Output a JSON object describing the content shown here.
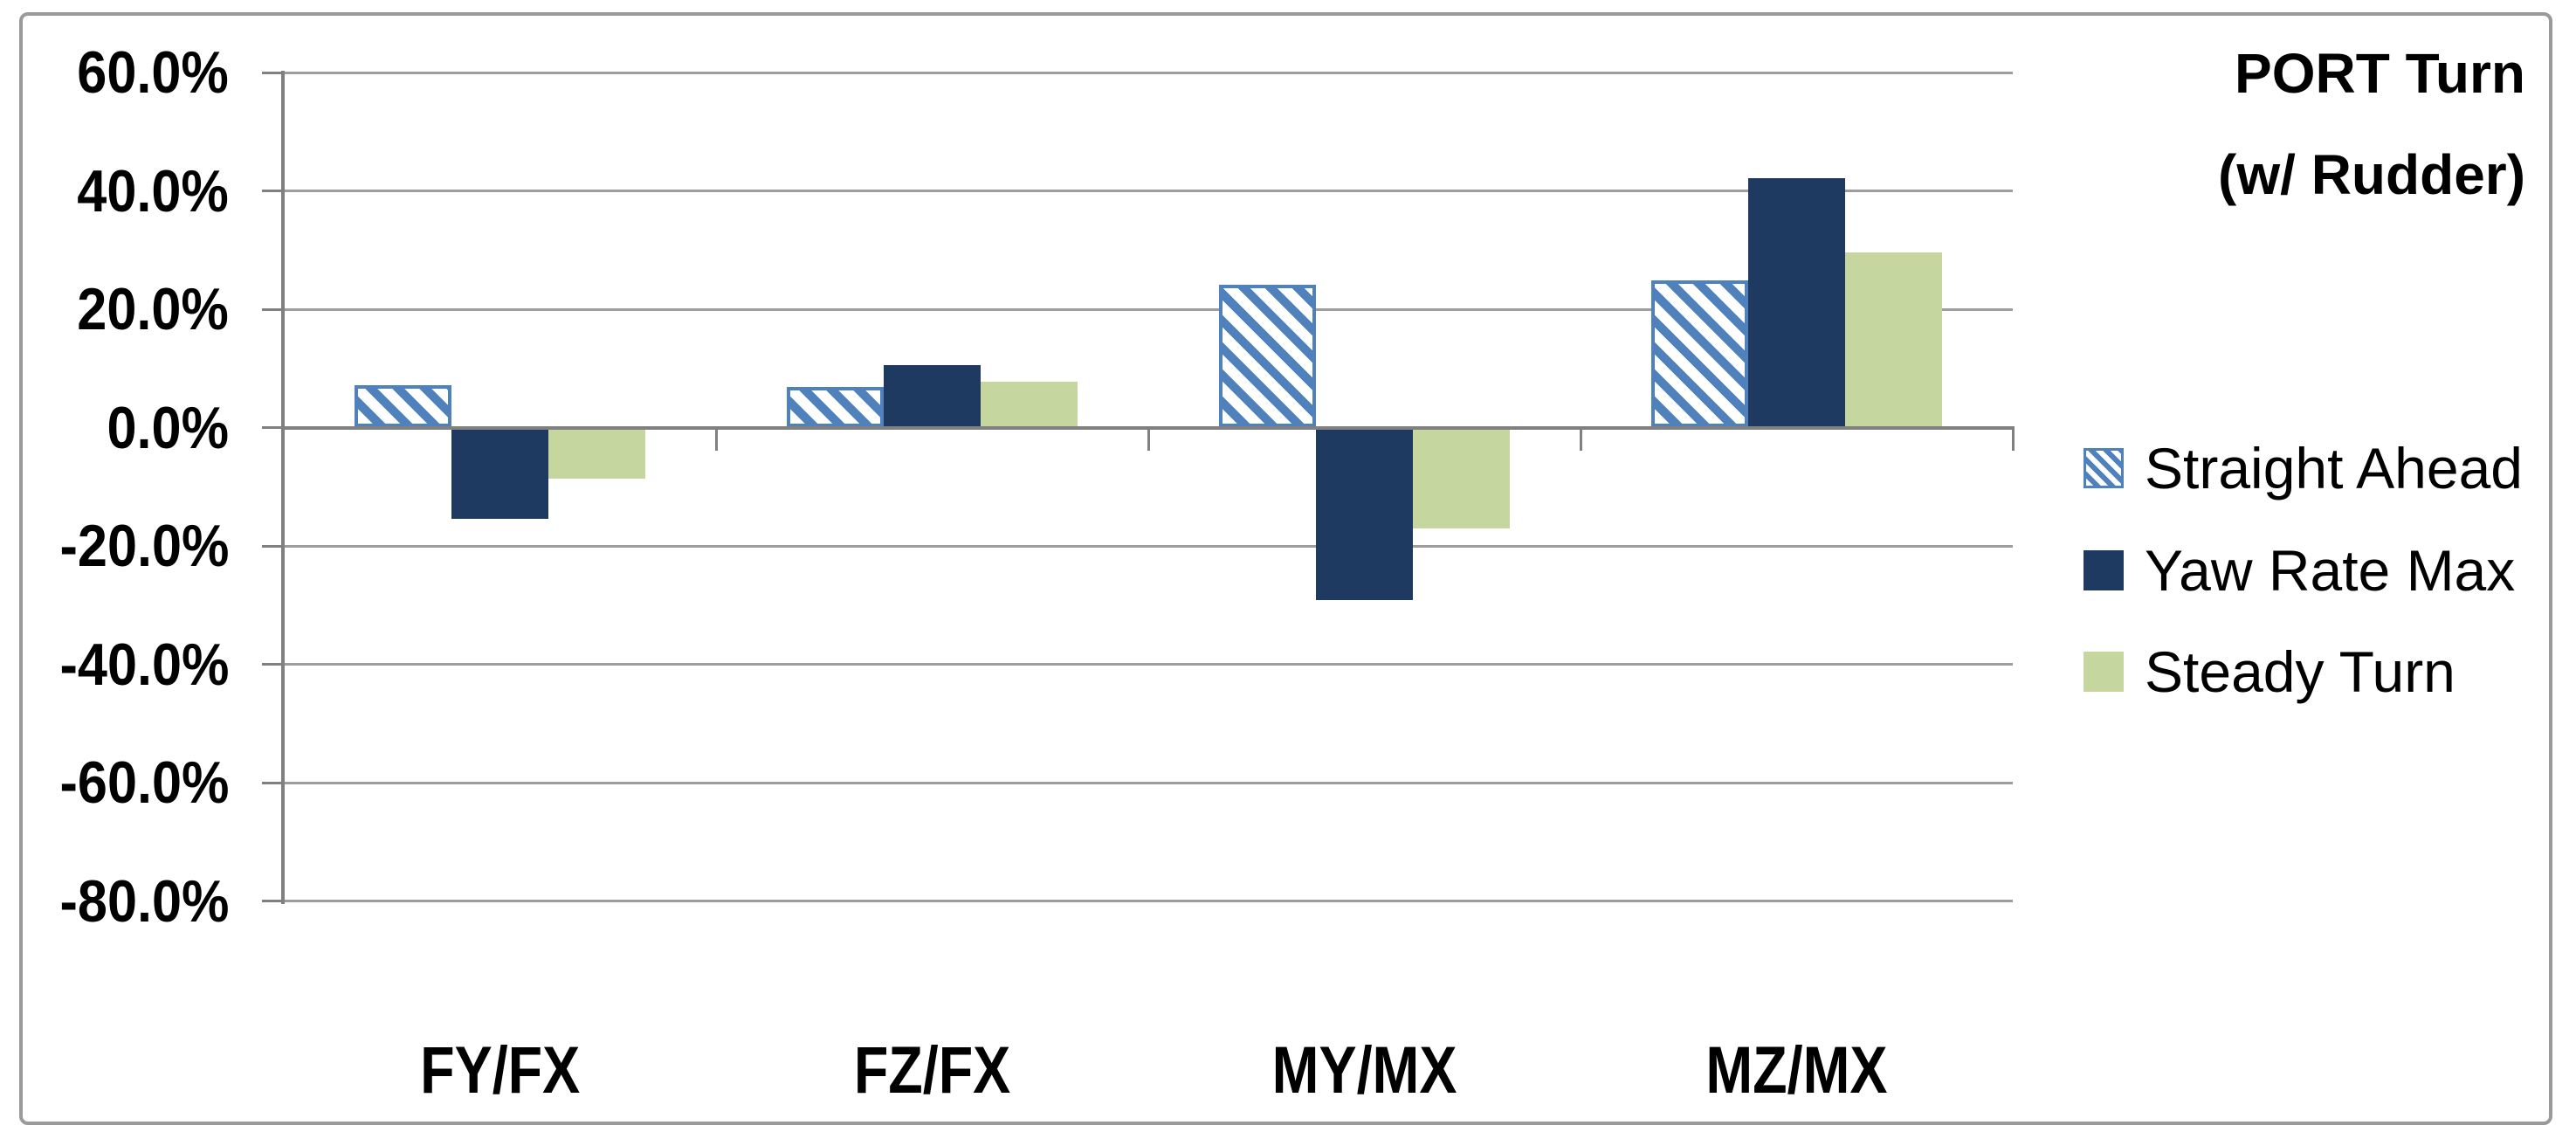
{
  "title": {
    "line1": "PORT Turn",
    "line2": "(w/ Rudder)"
  },
  "chart_data": {
    "type": "bar",
    "title": "PORT Turn (w/ Rudder)",
    "categories": [
      "FY/FX",
      "FZ/FX",
      "MY/MX",
      "MZ/MX"
    ],
    "series": [
      {
        "name": "Straight Ahead",
        "style": "diagonal-hatch",
        "color": "#4F81BD",
        "values_pct": [
          7.2,
          6.9,
          24.2,
          24.9
        ]
      },
      {
        "name": "Yaw Rate Max",
        "style": "solid",
        "color": "#1F3A60",
        "values_pct": [
          -15.4,
          10.6,
          -29.2,
          42.2
        ]
      },
      {
        "name": "Steady Turn",
        "style": "solid",
        "color": "#C5D79E",
        "values_pct": [
          -8.6,
          7.7,
          -17.1,
          29.6
        ]
      }
    ],
    "y_axis": {
      "ticks": [
        "60.0%",
        "40.0%",
        "20.0%",
        "0.0%",
        "-20.0%",
        "-40.0%",
        "-60.0%",
        "-80.0%"
      ],
      "max_pct": 60,
      "min_pct": -80,
      "step_pct": 20
    },
    "grid": true,
    "legend_position": "right"
  },
  "colors": {
    "hatch_blue": "#4F81BD",
    "navy": "#1F3A60",
    "green": "#C5D79E",
    "grid": "#9d9d9d",
    "axis": "#808080",
    "frame": "#9a9a9a",
    "text": "#000000"
  }
}
